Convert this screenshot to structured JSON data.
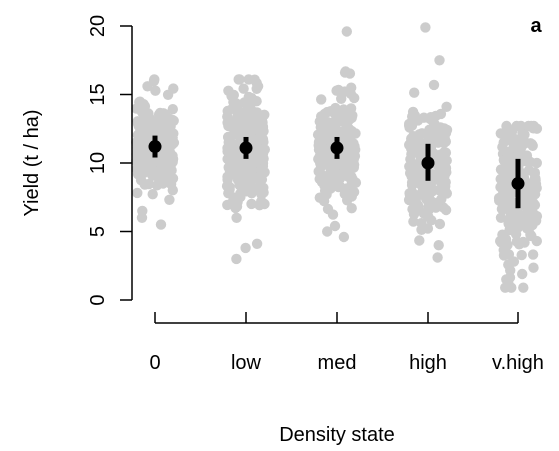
{
  "chart_data": {
    "type": "scatter",
    "panel_label": "a",
    "xlabel": "Density state",
    "ylabel": "Yield (t / ha)",
    "categories": [
      "0",
      "low",
      "med",
      "high",
      "v.high"
    ],
    "ylim": [
      0,
      20
    ],
    "yticks": [
      0,
      5,
      10,
      15,
      20
    ],
    "grid": false,
    "summary": {
      "means": [
        11.2,
        11.1,
        11.1,
        10.0,
        8.5
      ],
      "lower": [
        10.4,
        10.3,
        10.3,
        8.7,
        6.7
      ],
      "upper": [
        12.0,
        11.9,
        11.9,
        11.4,
        10.3
      ]
    },
    "points": [
      {
        "category": "0",
        "min": 5.5,
        "max": 16.1,
        "center": 11.2,
        "spread": 1.6,
        "n": 260,
        "extremes": [
          16.1,
          15.6,
          5.5,
          6.0,
          6.5
        ]
      },
      {
        "category": "low",
        "min": 3.0,
        "max": 16.1,
        "center": 11.0,
        "spread": 1.9,
        "n": 280,
        "extremes": [
          16.1,
          15.6,
          4.1,
          3.8,
          3.0
        ]
      },
      {
        "category": "med",
        "min": 4.6,
        "max": 19.6,
        "center": 11.0,
        "spread": 1.8,
        "n": 220,
        "extremes": [
          19.6,
          16.6,
          4.6,
          5.0,
          5.4
        ]
      },
      {
        "category": "high",
        "min": 3.1,
        "max": 19.9,
        "center": 9.8,
        "spread": 2.2,
        "n": 200,
        "extremes": [
          19.9,
          17.5,
          15.7,
          3.1,
          4.0
        ]
      },
      {
        "category": "v.high",
        "min": 0.9,
        "max": 12.7,
        "center": 8.0,
        "spread": 2.6,
        "n": 200,
        "extremes": [
          12.7,
          0.9,
          1.2,
          1.5,
          1.9
        ]
      }
    ],
    "colors": {
      "points": "#cccccc",
      "summary": "#000000",
      "axis": "#000000"
    }
  }
}
